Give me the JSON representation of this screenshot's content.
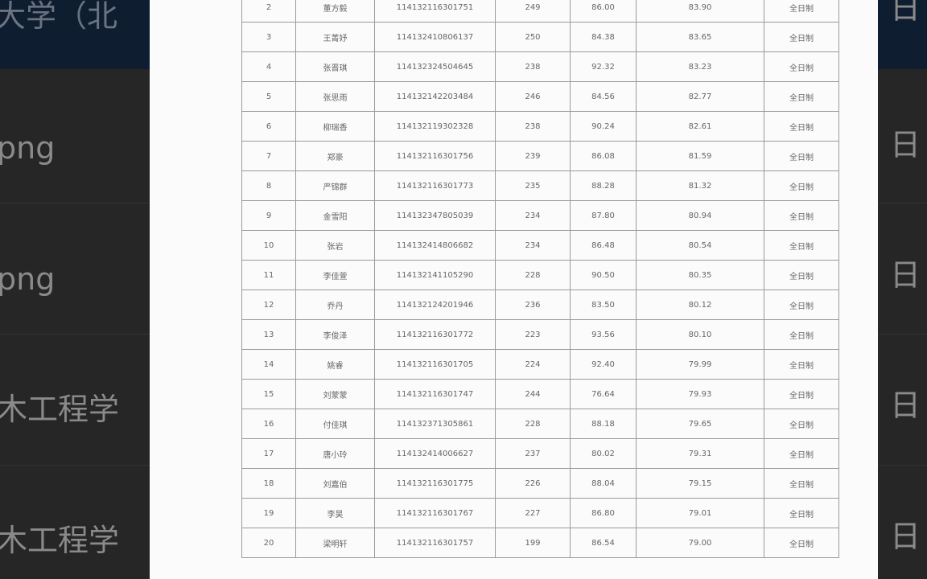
{
  "background": {
    "title": "大学（北",
    "items": [
      "png",
      "png",
      "木工程学",
      "木工程学"
    ],
    "dates": [
      "日",
      "日",
      "日",
      "日",
      "日"
    ]
  },
  "table": {
    "rows": [
      [
        "2",
        "董方毅",
        "114132116301751",
        "249",
        "86.00",
        "83.90",
        "全日制"
      ],
      [
        "3",
        "王菁妤",
        "114132410806137",
        "250",
        "84.38",
        "83.65",
        "全日制"
      ],
      [
        "4",
        "张晋琪",
        "114132324504645",
        "238",
        "92.32",
        "83.23",
        "全日制"
      ],
      [
        "5",
        "张思雨",
        "114132142203484",
        "246",
        "84.56",
        "82.77",
        "全日制"
      ],
      [
        "6",
        "柳瑞香",
        "114132119302328",
        "238",
        "90.24",
        "82.61",
        "全日制"
      ],
      [
        "7",
        "郑豪",
        "114132116301756",
        "239",
        "86.08",
        "81.59",
        "全日制"
      ],
      [
        "8",
        "严锦群",
        "114132116301773",
        "235",
        "88.28",
        "81.32",
        "全日制"
      ],
      [
        "9",
        "金雪阳",
        "114132347805039",
        "234",
        "87.80",
        "80.94",
        "全日制"
      ],
      [
        "10",
        "张岩",
        "114132414806682",
        "234",
        "86.48",
        "80.54",
        "全日制"
      ],
      [
        "11",
        "李佳萱",
        "114132141105290",
        "228",
        "90.50",
        "80.35",
        "全日制"
      ],
      [
        "12",
        "乔丹",
        "114132124201946",
        "236",
        "83.50",
        "80.12",
        "全日制"
      ],
      [
        "13",
        "李俊泽",
        "114132116301772",
        "223",
        "93.56",
        "80.10",
        "全日制"
      ],
      [
        "14",
        "姚睿",
        "114132116301705",
        "224",
        "92.40",
        "79.99",
        "全日制"
      ],
      [
        "15",
        "刘蒙蒙",
        "114132116301747",
        "244",
        "76.64",
        "79.93",
        "全日制"
      ],
      [
        "16",
        "付佳琪",
        "114132371305861",
        "228",
        "88.18",
        "79.65",
        "全日制"
      ],
      [
        "17",
        "唐小玲",
        "114132414006627",
        "237",
        "80.02",
        "79.31",
        "全日制"
      ],
      [
        "18",
        "刘嘉伯",
        "114132116301775",
        "226",
        "88.04",
        "79.15",
        "全日制"
      ],
      [
        "19",
        "李昊",
        "114132116301767",
        "227",
        "86.80",
        "79.01",
        "全日制"
      ],
      [
        "20",
        "梁明轩",
        "114132116301757",
        "199",
        "86.54",
        "79.00",
        "全日制"
      ]
    ]
  }
}
